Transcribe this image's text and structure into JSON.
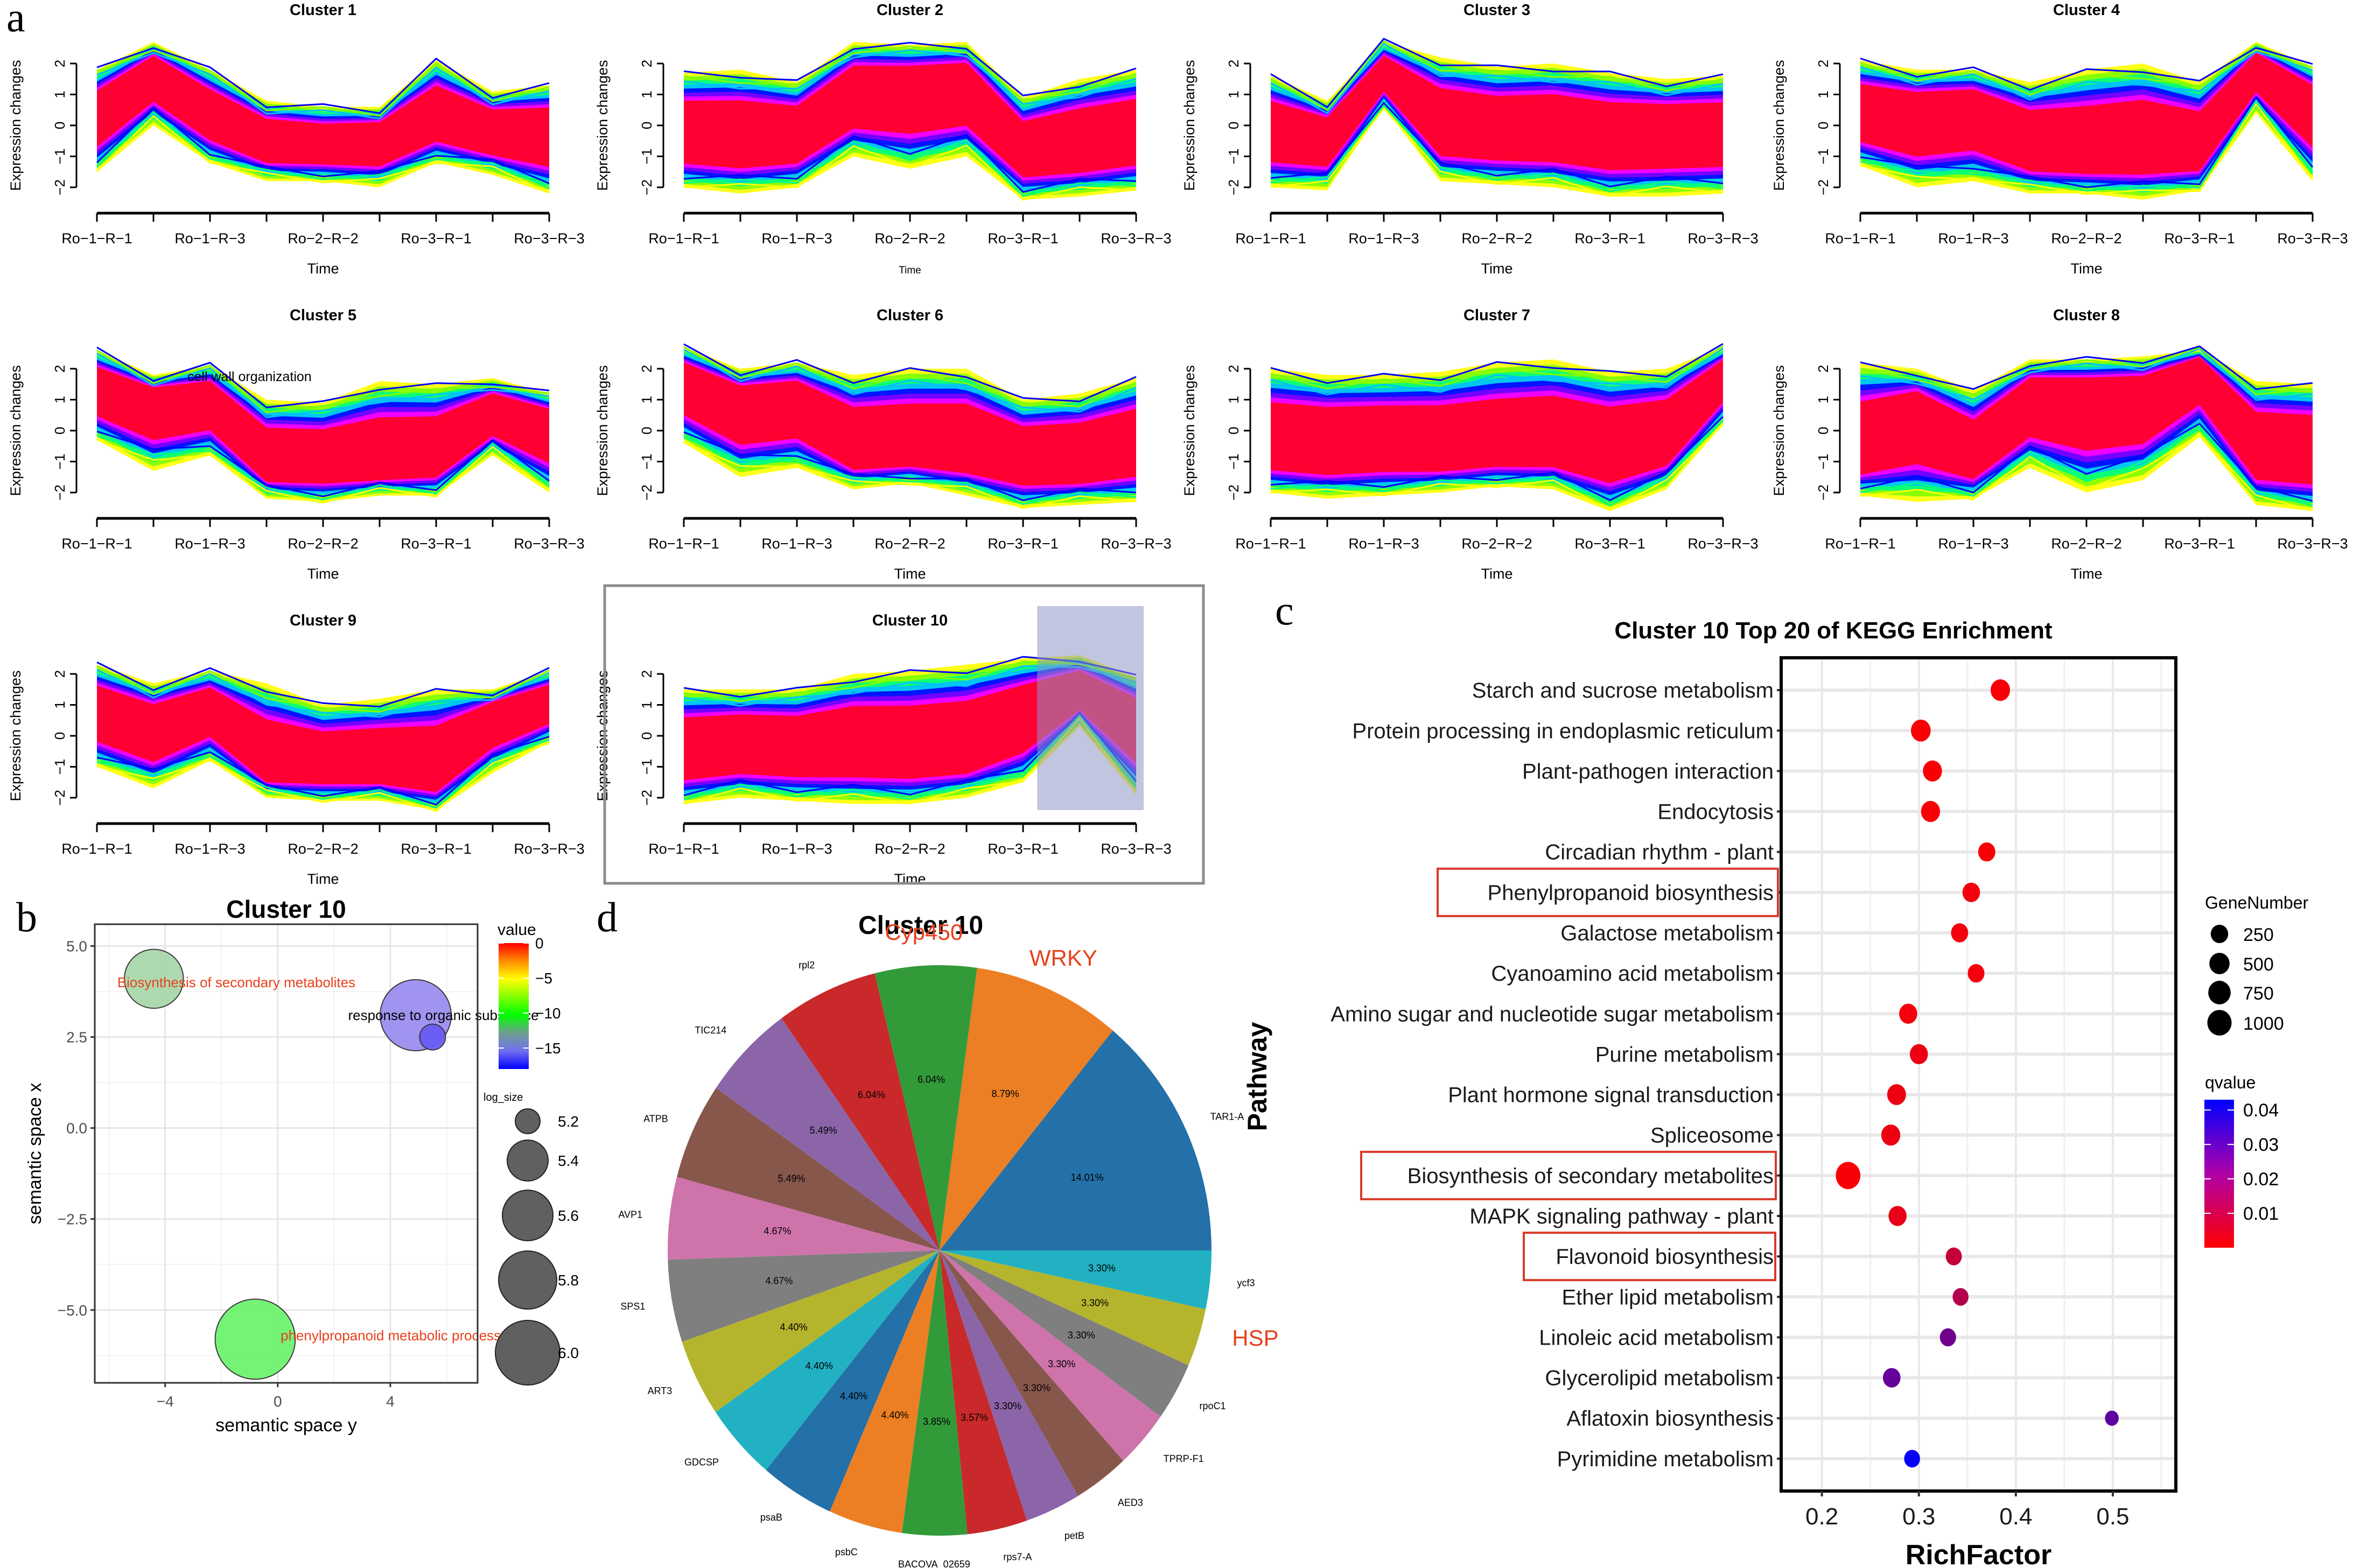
{
  "panel_letters": {
    "a": "a",
    "b": "b",
    "c": "c",
    "d": "d"
  },
  "chart_data": [
    {
      "id": "clusters",
      "type": "line",
      "description": "Mfuzz-style gene expression cluster profiles (a)",
      "x_ticks": [
        "Ro−1−R−1",
        "Ro−1−R−3",
        "Ro−2−R−2",
        "Ro−3−R−1",
        "Ro−3−R−3"
      ],
      "x_positions": 9,
      "xlabel": "Time",
      "ylabel": "Expression changes",
      "y_ticks": [
        "−2",
        "−1",
        "0",
        "1",
        "2"
      ],
      "ylim": [
        -2.6,
        2.8
      ],
      "line_colors": [
        "#ff0033",
        "#ff00ff",
        "#8000ff",
        "#0000ff",
        "#00c0ff",
        "#00ff80",
        "#80ff00",
        "#ffff00"
      ],
      "clusters": [
        {
          "title": "Cluster 1",
          "annotation": "",
          "highlight": false,
          "center": [
            0.3,
            1.7,
            0.4,
            -0.5,
            -0.6,
            -0.5,
            0.3,
            -0.2,
            -0.3
          ],
          "upper": [
            1.8,
            2.7,
            1.8,
            0.8,
            0.6,
            0.6,
            2.1,
            1.1,
            1.3
          ],
          "lower": [
            -1.5,
            0.0,
            -1.2,
            -1.8,
            -1.8,
            -2.0,
            -1.2,
            -1.6,
            -2.2
          ]
        },
        {
          "title": "Cluster 2",
          "annotation": "",
          "highlight": false,
          "xlabel_small": true,
          "center": [
            -0.3,
            -0.4,
            -0.3,
            1.0,
            1.1,
            1.2,
            -0.8,
            -0.6,
            -0.3
          ],
          "upper": [
            1.7,
            1.8,
            1.4,
            2.7,
            2.6,
            2.7,
            0.9,
            1.5,
            1.8
          ],
          "lower": [
            -2.0,
            -2.2,
            -2.0,
            -1.0,
            -1.4,
            -1.0,
            -2.4,
            -2.3,
            -2.1
          ]
        },
        {
          "title": "Cluster 3",
          "annotation": "",
          "highlight": false,
          "center": [
            -0.2,
            -0.4,
            1.7,
            0.0,
            -0.2,
            -0.2,
            -0.4,
            -0.3,
            -0.3
          ],
          "upper": [
            1.6,
            0.8,
            2.7,
            2.2,
            1.9,
            2.0,
            1.7,
            1.5,
            1.6
          ],
          "lower": [
            -2.0,
            -2.1,
            0.6,
            -1.8,
            -1.9,
            -2.0,
            -2.3,
            -2.3,
            -2.2
          ]
        },
        {
          "title": "Cluster 4",
          "annotation": "",
          "highlight": false,
          "center": [
            0.4,
            0.2,
            0.4,
            -0.6,
            -0.8,
            -0.6,
            -0.7,
            1.9,
            0.6
          ],
          "upper": [
            2.1,
            1.8,
            1.8,
            1.4,
            1.8,
            2.0,
            1.4,
            2.7,
            1.9
          ],
          "lower": [
            -1.3,
            -2.0,
            -1.8,
            -2.2,
            -2.2,
            -2.4,
            -2.1,
            0.4,
            -1.8
          ]
        },
        {
          "title": "Cluster 5",
          "annotation": "cell wall organization",
          "highlight": false,
          "center": [
            1.4,
            0.9,
            1.0,
            -1.0,
            -1.0,
            -1.0,
            -0.8,
            0.6,
            0.1
          ],
          "upper": [
            2.6,
            1.8,
            2.1,
            1.0,
            0.9,
            1.6,
            1.5,
            1.7,
            1.2
          ],
          "lower": [
            -0.3,
            -1.3,
            -0.8,
            -2.2,
            -2.3,
            -2.1,
            -2.1,
            -0.8,
            -2.0
          ]
        },
        {
          "title": "Cluster 6",
          "annotation": "",
          "highlight": false,
          "center": [
            1.6,
            0.8,
            0.9,
            -0.5,
            -0.5,
            -0.5,
            -0.9,
            -0.9,
            -0.5
          ],
          "upper": [
            2.7,
            2.0,
            2.2,
            1.8,
            2.0,
            2.0,
            1.0,
            1.2,
            1.7
          ],
          "lower": [
            -0.4,
            -1.5,
            -1.2,
            -1.9,
            -1.7,
            -2.1,
            -2.5,
            -2.4,
            -2.3
          ]
        },
        {
          "title": "Cluster 7",
          "annotation": "",
          "highlight": false,
          "center": [
            -0.4,
            -0.5,
            -0.4,
            -0.5,
            -0.4,
            -0.3,
            -0.6,
            -0.2,
            1.8
          ],
          "upper": [
            2.0,
            1.8,
            1.8,
            1.9,
            2.2,
            2.3,
            1.9,
            2.0,
            2.7
          ],
          "lower": [
            -2.0,
            -2.2,
            -2.1,
            -2.0,
            -1.8,
            -1.9,
            -2.6,
            -1.9,
            0.2
          ]
        },
        {
          "title": "Cluster 8",
          "annotation": "",
          "highlight": false,
          "center": [
            -0.6,
            0.4,
            -0.8,
            1.0,
            1.0,
            1.0,
            2.1,
            -0.6,
            -0.7
          ],
          "upper": [
            2.2,
            2.0,
            1.3,
            2.3,
            2.3,
            2.4,
            2.6,
            1.6,
            1.5
          ],
          "lower": [
            -2.1,
            -2.3,
            -2.2,
            -1.2,
            -2.0,
            -1.6,
            -0.2,
            -2.4,
            -2.6
          ]
        },
        {
          "title": "Cluster 9",
          "annotation": "",
          "highlight": false,
          "center": [
            0.8,
            0.2,
            0.9,
            -0.9,
            -0.9,
            -0.9,
            -1.1,
            0.6,
            1.1
          ],
          "upper": [
            2.3,
            1.7,
            2.1,
            1.7,
            1.0,
            1.2,
            1.5,
            1.5,
            2.1
          ],
          "lower": [
            -1.0,
            -1.7,
            -0.8,
            -2.0,
            -2.1,
            -2.1,
            -2.4,
            -1.2,
            -0.2
          ]
        },
        {
          "title": "Cluster 10",
          "annotation": "",
          "highlight": true,
          "highlight_range": [
            7,
            9
          ],
          "center": [
            -0.5,
            -0.3,
            -0.4,
            -0.3,
            -0.4,
            -0.3,
            0.6,
            1.5,
            0.4
          ],
          "upper": [
            1.5,
            1.5,
            1.5,
            2.0,
            2.1,
            2.3,
            2.5,
            2.6,
            1.9
          ],
          "lower": [
            -2.2,
            -2.0,
            -2.1,
            -2.2,
            -2.2,
            -2.0,
            -1.5,
            0.3,
            -1.9
          ]
        }
      ]
    },
    {
      "id": "semantic",
      "type": "scatter",
      "title": "Cluster 10",
      "xlabel": "semantic space y",
      "ylabel": "semantic space x",
      "xlim": [
        -6.5,
        7.1
      ],
      "ylim": [
        -7.0,
        5.6
      ],
      "x_ticks": [
        -4,
        0,
        4
      ],
      "x_tick_labels": [
        "−4",
        "0",
        "4"
      ],
      "y_ticks": [
        5.0,
        2.5,
        0.0,
        -2.5,
        -5.0
      ],
      "y_tick_labels": [
        "5.0",
        "2.5",
        "0.0",
        "−2.5",
        "−5.0"
      ],
      "grid": true,
      "points": [
        {
          "label": "Biosynthesis of secondary metabolites",
          "x": -4.4,
          "y": 4.1,
          "value": -15.5,
          "log_size": 5.55,
          "color": "#a9d8ac",
          "label_color": "#e8401c",
          "label_x": -5.7,
          "label_y": 4.0
        },
        {
          "label": "response to organic substance",
          "x": 4.9,
          "y": 3.1,
          "value": -17.0,
          "log_size": 5.75,
          "color": "#9b8ff0",
          "label_color": "#000000",
          "label_x": 2.5,
          "label_y": 3.1
        },
        {
          "label": "",
          "x": 5.5,
          "y": 2.5,
          "value": -18.0,
          "log_size": 5.0,
          "color": "#6a5cf5",
          "label_color": "#000000"
        },
        {
          "label": "phenylpropanoid metabolic process",
          "x": -0.8,
          "y": -5.8,
          "value": -12.0,
          "log_size": 5.9,
          "color": "#6ef36e",
          "label_color": "#e8401c",
          "label_x": 0.1,
          "label_y": -5.7
        }
      ],
      "color_legend": {
        "title": "value",
        "ticks": [
          0,
          -5,
          -10,
          -15
        ],
        "tick_labels": [
          "0",
          "−5",
          "−10",
          "−15"
        ],
        "range": [
          -18,
          0
        ],
        "colors": [
          "#ff0000",
          "#ff8c00",
          "#ffff00",
          "#80ff00",
          "#00ff00",
          "#6f9f8f",
          "#7070f0",
          "#0000ff"
        ]
      },
      "size_legend": {
        "title": "log_size",
        "values": [
          5.2,
          5.4,
          5.6,
          5.8,
          6.0
        ],
        "labels": [
          "5.2",
          "5.4",
          "5.6",
          "5.8",
          "6.0"
        ]
      }
    },
    {
      "id": "kegg",
      "type": "scatter",
      "title": "Cluster 10 Top 20 of KEGG Enrichment",
      "xlabel": "RichFactor",
      "ylabel": "Pathway",
      "xlim": [
        0.158,
        0.565
      ],
      "x_ticks": [
        0.2,
        0.3,
        0.4,
        0.5
      ],
      "x_tick_labels": [
        "0.2",
        "0.3",
        "0.4",
        "0.5"
      ],
      "grid": true,
      "highlighted": [
        "Phenylpropanoid biosynthesis",
        "Biosynthesis of secondary metabolites",
        "Flavonoid biosynthesis"
      ],
      "highlight_color": "#d9392b",
      "pathways": [
        {
          "name": "Starch and sucrose metabolism",
          "rich_factor": 0.384,
          "gene_number": 420,
          "qvalue": 0.001
        },
        {
          "name": "Protein processing in endoplasmic reticulum",
          "rich_factor": 0.302,
          "gene_number": 450,
          "qvalue": 0.001
        },
        {
          "name": "Plant-pathogen interaction",
          "rich_factor": 0.314,
          "gene_number": 380,
          "qvalue": 0.001
        },
        {
          "name": "Endocytosis",
          "rich_factor": 0.312,
          "gene_number": 380,
          "qvalue": 0.001
        },
        {
          "name": "Circadian rhythm - plant",
          "rich_factor": 0.37,
          "gene_number": 230,
          "qvalue": 0.001
        },
        {
          "name": "Phenylpropanoid biosynthesis",
          "rich_factor": 0.354,
          "gene_number": 260,
          "qvalue": 0.002
        },
        {
          "name": "Galactose metabolism",
          "rich_factor": 0.342,
          "gene_number": 230,
          "qvalue": 0.002
        },
        {
          "name": "Cyanoamino acid metabolism",
          "rich_factor": 0.359,
          "gene_number": 200,
          "qvalue": 0.002
        },
        {
          "name": "Amino sugar and nucleotide sugar metabolism",
          "rich_factor": 0.289,
          "gene_number": 300,
          "qvalue": 0.002
        },
        {
          "name": "Purine metabolism",
          "rich_factor": 0.3,
          "gene_number": 300,
          "qvalue": 0.003
        },
        {
          "name": "Plant hormone signal transduction",
          "rich_factor": 0.277,
          "gene_number": 360,
          "qvalue": 0.003
        },
        {
          "name": "Spliceosome",
          "rich_factor": 0.271,
          "gene_number": 380,
          "qvalue": 0.003
        },
        {
          "name": "Biosynthesis of secondary metabolites",
          "rich_factor": 0.227,
          "gene_number": 1050,
          "qvalue": 0.001
        },
        {
          "name": "MAPK signaling pathway - plant",
          "rich_factor": 0.278,
          "gene_number": 300,
          "qvalue": 0.004
        },
        {
          "name": "Flavonoid biosynthesis",
          "rich_factor": 0.336,
          "gene_number": 160,
          "qvalue": 0.01
        },
        {
          "name": "Ether lipid metabolism",
          "rich_factor": 0.343,
          "gene_number": 150,
          "qvalue": 0.013
        },
        {
          "name": "Linoleic acid metabolism",
          "rich_factor": 0.33,
          "gene_number": 170,
          "qvalue": 0.024
        },
        {
          "name": "Glycerolipid metabolism",
          "rich_factor": 0.272,
          "gene_number": 260,
          "qvalue": 0.026
        },
        {
          "name": "Aflatoxin biosynthesis",
          "rich_factor": 0.499,
          "gene_number": 50,
          "qvalue": 0.027
        },
        {
          "name": "Pyrimidine metabolism",
          "rich_factor": 0.293,
          "gene_number": 150,
          "qvalue": 0.042
        }
      ],
      "size_legend": {
        "title": "GeneNumber",
        "values": [
          250,
          500,
          750,
          1000
        ],
        "labels": [
          "250",
          "500",
          "750",
          "1000"
        ]
      },
      "color_legend": {
        "title": "qvalue",
        "ticks": [
          0.04,
          0.03,
          0.02,
          0.01
        ],
        "tick_labels": [
          "0.04",
          "0.03",
          "0.02",
          "0.01"
        ],
        "range": [
          0.0,
          0.043
        ],
        "low_color": "#ff0000",
        "high_color": "#0000ff"
      }
    },
    {
      "id": "pie",
      "type": "pie",
      "title": "Cluster 10",
      "start_angle_deg": 0,
      "direction": "counterclockwise",
      "slices": [
        {
          "label": "TAR1-A",
          "value": 14.01,
          "pct_label": "14.01%",
          "color": "#2470a8"
        },
        {
          "label": "",
          "value": 8.79,
          "pct_label": "8.79%",
          "color": "#ec7f23"
        },
        {
          "label": "",
          "value": 6.04,
          "pct_label": "6.04%",
          "color": "#339a3a"
        },
        {
          "label": "rpl2",
          "value": 6.04,
          "pct_label": "6.04%",
          "color": "#c9292a"
        },
        {
          "label": "TIC214",
          "value": 5.49,
          "pct_label": "5.49%",
          "color": "#8b65a7"
        },
        {
          "label": "ATPB",
          "value": 5.49,
          "pct_label": "5.49%",
          "color": "#87574c"
        },
        {
          "label": "AVP1",
          "value": 4.67,
          "pct_label": "4.67%",
          "color": "#cf74aa"
        },
        {
          "label": "SPS1",
          "value": 4.67,
          "pct_label": "4.67%",
          "color": "#7f7f7f"
        },
        {
          "label": "ART3",
          "value": 4.4,
          "pct_label": "4.40%",
          "color": "#b5b42d"
        },
        {
          "label": "GDCSP",
          "value": 4.4,
          "pct_label": "4.40%",
          "color": "#21b1c2"
        },
        {
          "label": "psaB",
          "value": 4.4,
          "pct_label": "4.40%",
          "color": "#2470a8"
        },
        {
          "label": "psbC",
          "value": 4.4,
          "pct_label": "4.40%",
          "color": "#ec7f23"
        },
        {
          "label": "BACOVA_02659",
          "value": 3.85,
          "pct_label": "3.85%",
          "color": "#339a3a"
        },
        {
          "label": "rps7-A",
          "value": 3.57,
          "pct_label": "3.57%",
          "color": "#c9292a"
        },
        {
          "label": "petB",
          "value": 3.3,
          "pct_label": "3.30%",
          "color": "#8b65a7"
        },
        {
          "label": "AED3",
          "value": 3.3,
          "pct_label": "3.30%",
          "color": "#87574c"
        },
        {
          "label": "TPRP-F1",
          "value": 3.3,
          "pct_label": "3.30%",
          "color": "#cf74aa"
        },
        {
          "label": "rpoC1",
          "value": 3.3,
          "pct_label": "3.30%",
          "color": "#7f7f7f"
        },
        {
          "label": "",
          "value": 3.3,
          "pct_label": "3.30%",
          "color": "#b5b42d"
        },
        {
          "label": "ycf3",
          "value": 3.3,
          "pct_label": "3.30%",
          "color": "#21b1c2"
        }
      ],
      "callouts": [
        {
          "text": "Cyp450",
          "slice": 2,
          "color": "#e8401c"
        },
        {
          "text": "WRKY",
          "slice": 1,
          "color": "#e8401c"
        },
        {
          "text": "HSP",
          "slice": 18,
          "color": "#e8401c"
        }
      ]
    }
  ]
}
